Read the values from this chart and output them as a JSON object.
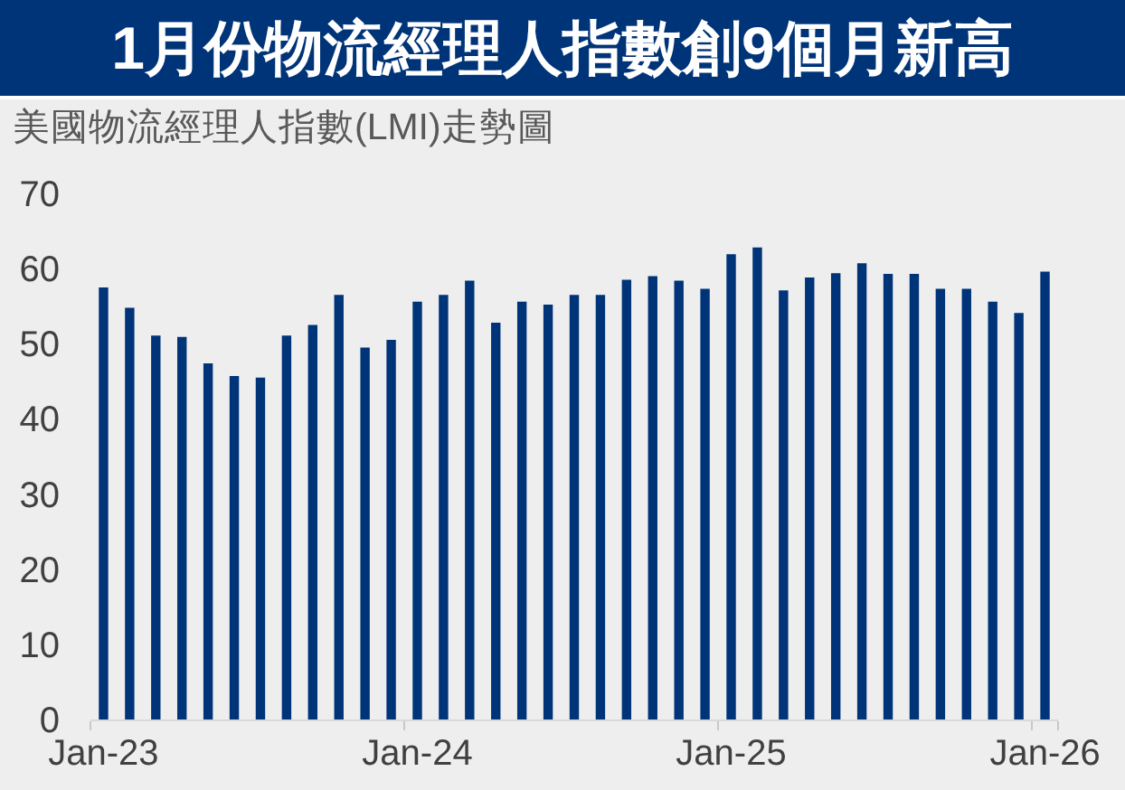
{
  "chart_data": {
    "type": "bar",
    "title": "1月份物流經理人指數創9個月新高",
    "subtitle": "美國物流經理人指數(LMI)走勢圖",
    "categories": [
      "Jan-23",
      null,
      null,
      null,
      null,
      null,
      null,
      null,
      null,
      null,
      null,
      null,
      "Jan-24",
      null,
      null,
      null,
      null,
      null,
      null,
      null,
      null,
      null,
      null,
      null,
      "Jan-25",
      null,
      null,
      null,
      null,
      null,
      null,
      null,
      null,
      null,
      null,
      null,
      "Jan-26"
    ],
    "values": [
      57.5,
      54.8,
      51.1,
      50.9,
      47.4,
      45.7,
      45.5,
      51.1,
      52.5,
      56.5,
      49.5,
      50.5,
      55.6,
      56.5,
      58.4,
      52.8,
      55.6,
      55.2,
      56.5,
      56.5,
      58.5,
      59.0,
      58.4,
      57.3,
      61.9,
      62.8,
      57.1,
      58.8,
      59.4,
      60.7,
      59.3,
      59.3,
      57.3,
      57.3,
      55.6,
      54.1,
      59.6
    ],
    "color": "#003478",
    "ylim": [
      0,
      70
    ],
    "yticks": [
      0,
      10,
      20,
      30,
      40,
      50,
      60,
      70
    ]
  }
}
